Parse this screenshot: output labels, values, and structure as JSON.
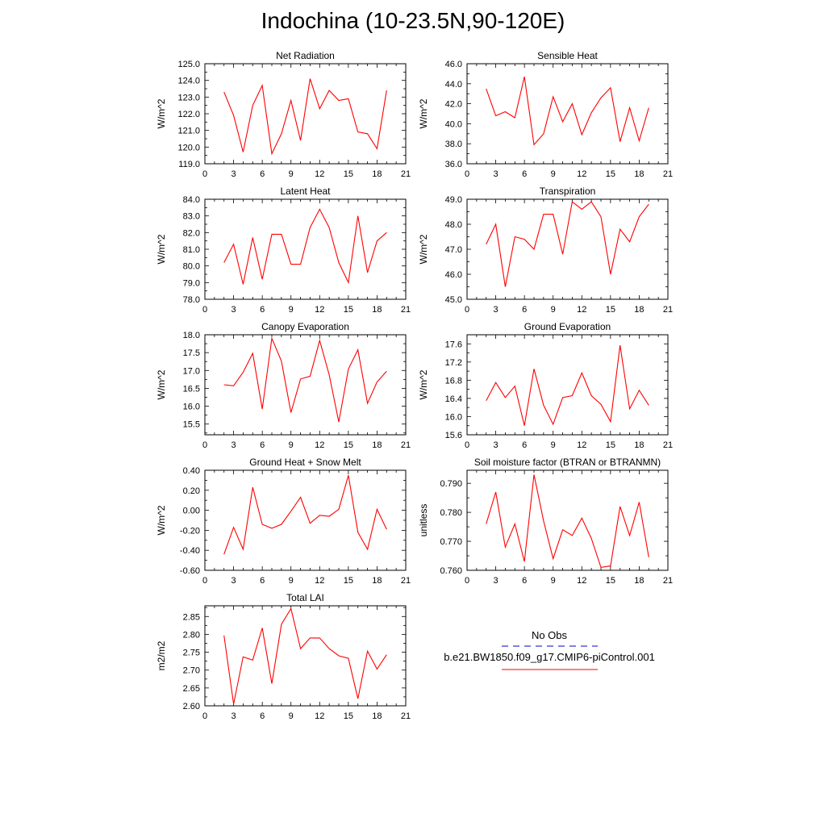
{
  "title": "Indochina (10-23.5N,90-120E)",
  "colors": {
    "model": "#ff0000",
    "obs": "#0000cc",
    "axis": "#000000"
  },
  "legend": {
    "obs_label": "No Obs",
    "model_label": "b.e21.BW1850.f09_g17.CMIP6-piControl.001"
  },
  "chart_data": [
    {
      "type": "line",
      "title": "Net Radiation",
      "ylabel": "W/m^2",
      "xlim": [
        0,
        21
      ],
      "ylim": [
        119.0,
        125.0
      ],
      "xticks": [
        "0",
        "3",
        "6",
        "9",
        "12",
        "15",
        "18",
        "21"
      ],
      "yticks": [
        "119.0",
        "120.0",
        "121.0",
        "122.0",
        "123.0",
        "124.0",
        "125.0"
      ],
      "series": [
        {
          "x": [
            2,
            3,
            4,
            5,
            6,
            7,
            8,
            9,
            10,
            11,
            12,
            13,
            14,
            15,
            16,
            17,
            18,
            19
          ],
          "values": [
            123.3,
            121.9,
            119.7,
            122.5,
            123.7,
            119.6,
            120.8,
            122.8,
            120.4,
            124.1,
            122.3,
            123.4,
            122.8,
            122.9,
            120.9,
            120.8,
            119.9,
            123.4
          ]
        }
      ]
    },
    {
      "type": "line",
      "title": "Sensible Heat",
      "ylabel": "W/m^2",
      "xlim": [
        0,
        21
      ],
      "ylim": [
        36.0,
        46.0
      ],
      "xticks": [
        "0",
        "3",
        "6",
        "9",
        "12",
        "15",
        "18",
        "21"
      ],
      "yticks": [
        "36.0",
        "38.0",
        "40.0",
        "42.0",
        "44.0",
        "46.0"
      ],
      "series": [
        {
          "x": [
            2,
            3,
            4,
            5,
            6,
            7,
            8,
            9,
            10,
            11,
            12,
            13,
            14,
            15,
            16,
            17,
            18,
            19
          ],
          "values": [
            43.5,
            40.8,
            41.2,
            40.6,
            44.7,
            37.9,
            39.0,
            42.7,
            40.2,
            42.0,
            38.9,
            41.1,
            42.6,
            43.6,
            38.2,
            41.6,
            38.3,
            41.6
          ]
        }
      ]
    },
    {
      "type": "line",
      "title": "Latent Heat",
      "ylabel": "W/m^2",
      "xlim": [
        0,
        21
      ],
      "ylim": [
        78.0,
        84.0
      ],
      "xticks": [
        "0",
        "3",
        "6",
        "9",
        "12",
        "15",
        "18",
        "21"
      ],
      "yticks": [
        "78.0",
        "79.0",
        "80.0",
        "81.0",
        "82.0",
        "83.0",
        "84.0"
      ],
      "series": [
        {
          "x": [
            2,
            3,
            4,
            5,
            6,
            7,
            8,
            9,
            10,
            11,
            12,
            13,
            14,
            15,
            16,
            17,
            18,
            19
          ],
          "values": [
            80.2,
            81.3,
            78.9,
            81.7,
            79.2,
            81.9,
            81.9,
            80.1,
            80.1,
            82.3,
            83.4,
            82.3,
            80.2,
            79.0,
            83.0,
            79.6,
            81.5,
            82.0
          ]
        }
      ]
    },
    {
      "type": "line",
      "title": "Transpiration",
      "ylabel": "W/m^2",
      "xlim": [
        0,
        21
      ],
      "ylim": [
        45.0,
        49.0
      ],
      "xticks": [
        "0",
        "3",
        "6",
        "9",
        "12",
        "15",
        "18",
        "21"
      ],
      "yticks": [
        "45.0",
        "46.0",
        "47.0",
        "48.0",
        "49.0"
      ],
      "series": [
        {
          "x": [
            2,
            3,
            4,
            5,
            6,
            7,
            8,
            9,
            10,
            11,
            12,
            13,
            14,
            15,
            16,
            17,
            18,
            19
          ],
          "values": [
            47.2,
            48.0,
            45.5,
            47.5,
            47.4,
            47.0,
            48.4,
            48.4,
            46.8,
            48.9,
            48.6,
            48.9,
            48.3,
            46.0,
            47.8,
            47.3,
            48.3,
            48.8
          ]
        }
      ]
    },
    {
      "type": "line",
      "title": "Canopy Evaporation",
      "ylabel": "W/m^2",
      "xlim": [
        0,
        21
      ],
      "ylim": [
        15.2,
        18.0
      ],
      "xticks": [
        "0",
        "3",
        "6",
        "9",
        "12",
        "15",
        "18",
        "21"
      ],
      "yticks": [
        "15.5",
        "16.0",
        "16.5",
        "17.0",
        "17.5",
        "18.0"
      ],
      "series": [
        {
          "x": [
            2,
            3,
            4,
            5,
            6,
            7,
            8,
            9,
            10,
            11,
            12,
            13,
            14,
            15,
            16,
            17,
            18,
            19
          ],
          "values": [
            16.6,
            16.57,
            16.95,
            17.48,
            15.92,
            17.9,
            17.26,
            15.82,
            16.76,
            16.84,
            17.84,
            16.88,
            15.56,
            17.04,
            17.58,
            16.08,
            16.68,
            16.98
          ]
        }
      ]
    },
    {
      "type": "line",
      "title": "Ground Evaporation",
      "ylabel": "W/m^2",
      "xlim": [
        0,
        21
      ],
      "ylim": [
        15.6,
        17.8
      ],
      "xticks": [
        "0",
        "3",
        "6",
        "9",
        "12",
        "15",
        "18",
        "21"
      ],
      "yticks": [
        "15.6",
        "16.0",
        "16.4",
        "16.8",
        "17.2",
        "17.6"
      ],
      "series": [
        {
          "x": [
            2,
            3,
            4,
            5,
            6,
            7,
            8,
            9,
            10,
            11,
            12,
            13,
            14,
            15,
            16,
            17,
            18,
            19
          ],
          "values": [
            16.35,
            16.75,
            16.42,
            16.67,
            15.8,
            17.05,
            16.25,
            15.83,
            16.42,
            16.46,
            16.96,
            16.46,
            16.27,
            15.89,
            17.57,
            16.17,
            16.58,
            16.25
          ]
        }
      ]
    },
    {
      "type": "line",
      "title": "Ground Heat + Snow Melt",
      "ylabel": "W/m^2",
      "xlim": [
        0,
        21
      ],
      "ylim": [
        -0.6,
        0.4
      ],
      "xticks": [
        "0",
        "3",
        "6",
        "9",
        "12",
        "15",
        "18",
        "21"
      ],
      "yticks": [
        "-0.60",
        "-0.40",
        "-0.20",
        "0.00",
        "0.20",
        "0.40"
      ],
      "series": [
        {
          "x": [
            2,
            3,
            4,
            5,
            6,
            7,
            8,
            9,
            10,
            11,
            12,
            13,
            14,
            15,
            16,
            17,
            18,
            19
          ],
          "values": [
            -0.44,
            -0.17,
            -0.39,
            0.23,
            -0.14,
            -0.18,
            -0.14,
            -0.01,
            0.13,
            -0.13,
            -0.05,
            -0.06,
            0.01,
            0.35,
            -0.22,
            -0.39,
            0.01,
            -0.19
          ]
        }
      ]
    },
    {
      "type": "line",
      "title": "Soil moisture factor (BTRAN or BTRANMN)",
      "ylabel": "unitless",
      "xlim": [
        0,
        21
      ],
      "ylim": [
        0.76,
        0.7945
      ],
      "xticks": [
        "0",
        "3",
        "6",
        "9",
        "12",
        "15",
        "18",
        "21"
      ],
      "yticks": [
        "0.760",
        "0.770",
        "0.780",
        "0.790"
      ],
      "series": [
        {
          "x": [
            2,
            3,
            4,
            5,
            6,
            7,
            8,
            9,
            10,
            11,
            12,
            13,
            14,
            15,
            16,
            17,
            18,
            19
          ],
          "values": [
            0.776,
            0.787,
            0.768,
            0.776,
            0.763,
            0.793,
            0.777,
            0.764,
            0.774,
            0.772,
            0.778,
            0.771,
            0.761,
            0.7615,
            0.782,
            0.772,
            0.7835,
            0.7645
          ]
        }
      ]
    },
    {
      "type": "line",
      "title": "Total LAI",
      "ylabel": "m2/m2",
      "xlim": [
        0,
        21
      ],
      "ylim": [
        2.6,
        2.88
      ],
      "xticks": [
        "0",
        "3",
        "6",
        "9",
        "12",
        "15",
        "18",
        "21"
      ],
      "yticks": [
        "2.60",
        "2.65",
        "2.70",
        "2.75",
        "2.80",
        "2.85"
      ],
      "series": [
        {
          "x": [
            2,
            3,
            4,
            5,
            6,
            7,
            8,
            9,
            10,
            11,
            12,
            13,
            14,
            15,
            16,
            17,
            18,
            19
          ],
          "values": [
            2.797,
            2.605,
            2.737,
            2.728,
            2.818,
            2.662,
            2.828,
            2.872,
            2.76,
            2.79,
            2.79,
            2.76,
            2.74,
            2.733,
            2.62,
            2.753,
            2.703,
            2.743
          ]
        }
      ]
    }
  ]
}
